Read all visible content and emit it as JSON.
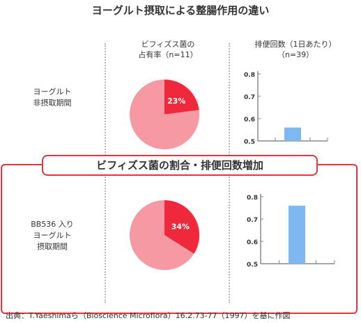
{
  "title": "ヨーグルト摂取による整腸作用の違い",
  "columns": {
    "pie_header_line1": "ビフィズス菌の",
    "pie_header_line2": "占有率（n=11）",
    "bar_header_line1": "排便回数（1日あたり）",
    "bar_header_line2": "（n=39）"
  },
  "rows": {
    "row1_label_line1": "ヨーグルト",
    "row1_label_line2": "非摂取期間",
    "row2_label_line1": "BB536 入り",
    "row2_label_line2": "ヨーグルト",
    "row2_label_line3": "摂取期間"
  },
  "banner": "ビフィズス菌の割合・排便回数増加",
  "source": "出典：T.Yaeshimaら（Bioscience Microflora）16.2.73-77（1997）を基に作図",
  "colors": {
    "highlight": "#f0283c",
    "pie_rest": "#f799a2",
    "bar": "#7fb8f0",
    "frame": "#e8323c"
  },
  "chart_data": [
    {
      "type": "pie",
      "slices": [
        {
          "label": "23%",
          "value": 23
        },
        {
          "value": 77
        }
      ]
    },
    {
      "type": "bar",
      "categories": [
        ""
      ],
      "values": [
        0.56
      ],
      "ylim": [
        0.5,
        0.8
      ],
      "yticks": [
        "0.8",
        "0.7",
        "0.6",
        "0.5"
      ]
    },
    {
      "type": "pie",
      "slices": [
        {
          "label": "34%",
          "value": 34
        },
        {
          "value": 66
        }
      ]
    },
    {
      "type": "bar",
      "categories": [
        ""
      ],
      "values": [
        0.76
      ],
      "ylim": [
        0.5,
        0.8
      ],
      "yticks": [
        "0.8",
        "0.7",
        "0.6",
        "0.5"
      ]
    }
  ]
}
